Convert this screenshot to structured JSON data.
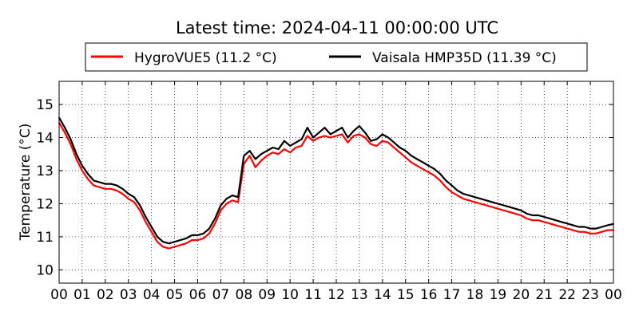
{
  "chart_data": {
    "type": "line",
    "title": "Latest time: 2024-04-11 00:00:00 UTC",
    "ylabel": "Temperature (°C)",
    "xlabel": "",
    "x_unit": "hour (UTC)",
    "xlim": [
      0,
      24
    ],
    "ylim": [
      9.6,
      15.7
    ],
    "x_tick_labels": [
      "00",
      "01",
      "02",
      "03",
      "04",
      "05",
      "06",
      "07",
      "08",
      "09",
      "10",
      "11",
      "12",
      "13",
      "14",
      "15",
      "16",
      "17",
      "18",
      "19",
      "20",
      "21",
      "22",
      "23",
      "00"
    ],
    "y_ticks": [
      10,
      11,
      12,
      13,
      14,
      15
    ],
    "grid": true,
    "legend_position": "top",
    "series": [
      {
        "name": "HygroVUE5 (11.2 °C)",
        "color": "#ff0000",
        "x": [
          0,
          0.25,
          0.5,
          0.75,
          1,
          1.25,
          1.5,
          1.75,
          2,
          2.25,
          2.5,
          2.75,
          3,
          3.25,
          3.5,
          3.75,
          4,
          4.25,
          4.5,
          4.75,
          5,
          5.25,
          5.5,
          5.75,
          6,
          6.25,
          6.5,
          6.75,
          7,
          7.25,
          7.5,
          7.75,
          8,
          8.25,
          8.5,
          8.75,
          9,
          9.25,
          9.5,
          9.75,
          10,
          10.25,
          10.5,
          10.75,
          11,
          11.25,
          11.5,
          11.75,
          12,
          12.25,
          12.5,
          12.75,
          13,
          13.25,
          13.5,
          13.75,
          14,
          14.25,
          14.5,
          14.75,
          15,
          15.25,
          15.5,
          15.75,
          16,
          16.25,
          16.5,
          16.75,
          17,
          17.25,
          17.5,
          17.75,
          18,
          18.25,
          18.5,
          18.75,
          19,
          19.25,
          19.5,
          19.75,
          20,
          20.25,
          20.5,
          20.75,
          21,
          21.25,
          21.5,
          21.75,
          22,
          22.25,
          22.5,
          22.75,
          23,
          23.25,
          23.5,
          23.75,
          24
        ],
        "values": [
          14.45,
          14.15,
          13.8,
          13.35,
          13.0,
          12.75,
          12.55,
          12.5,
          12.45,
          12.45,
          12.4,
          12.3,
          12.15,
          12.05,
          11.8,
          11.45,
          11.15,
          10.85,
          10.7,
          10.65,
          10.7,
          10.75,
          10.8,
          10.9,
          10.9,
          10.95,
          11.1,
          11.4,
          11.8,
          12.0,
          12.1,
          12.05,
          13.2,
          13.45,
          13.1,
          13.3,
          13.45,
          13.55,
          13.5,
          13.65,
          13.55,
          13.7,
          13.75,
          14.05,
          13.9,
          14.0,
          14.05,
          14.0,
          14.05,
          14.1,
          13.85,
          14.05,
          14.1,
          14.0,
          13.8,
          13.75,
          13.9,
          13.85,
          13.7,
          13.55,
          13.4,
          13.25,
          13.15,
          13.05,
          12.95,
          12.85,
          12.7,
          12.5,
          12.35,
          12.25,
          12.15,
          12.1,
          12.05,
          12.0,
          11.95,
          11.9,
          11.85,
          11.8,
          11.75,
          11.7,
          11.65,
          11.55,
          11.5,
          11.5,
          11.45,
          11.4,
          11.35,
          11.3,
          11.25,
          11.2,
          11.15,
          11.15,
          11.1,
          11.1,
          11.15,
          11.2,
          11.2
        ]
      },
      {
        "name": "Vaisala HMP35D (11.39 °C)",
        "color": "#000000",
        "x": [
          0,
          0.25,
          0.5,
          0.75,
          1,
          1.25,
          1.5,
          1.75,
          2,
          2.25,
          2.5,
          2.75,
          3,
          3.25,
          3.5,
          3.75,
          4,
          4.25,
          4.5,
          4.75,
          5,
          5.25,
          5.5,
          5.75,
          6,
          6.25,
          6.5,
          6.75,
          7,
          7.25,
          7.5,
          7.75,
          8,
          8.25,
          8.5,
          8.75,
          9,
          9.25,
          9.5,
          9.75,
          10,
          10.25,
          10.5,
          10.75,
          11,
          11.25,
          11.5,
          11.75,
          12,
          12.25,
          12.5,
          12.75,
          13,
          13.25,
          13.5,
          13.75,
          14,
          14.25,
          14.5,
          14.75,
          15,
          15.25,
          15.5,
          15.75,
          16,
          16.25,
          16.5,
          16.75,
          17,
          17.25,
          17.5,
          17.75,
          18,
          18.25,
          18.5,
          18.75,
          19,
          19.25,
          19.5,
          19.75,
          20,
          20.25,
          20.5,
          20.75,
          21,
          21.25,
          21.5,
          21.75,
          22,
          22.25,
          22.5,
          22.75,
          23,
          23.25,
          23.5,
          23.75,
          24
        ],
        "values": [
          14.6,
          14.3,
          13.95,
          13.5,
          13.15,
          12.9,
          12.7,
          12.65,
          12.6,
          12.6,
          12.55,
          12.45,
          12.3,
          12.2,
          11.95,
          11.6,
          11.3,
          11.0,
          10.85,
          10.8,
          10.85,
          10.9,
          10.95,
          11.05,
          11.05,
          11.1,
          11.25,
          11.55,
          11.95,
          12.15,
          12.25,
          12.2,
          13.45,
          13.6,
          13.35,
          13.5,
          13.6,
          13.7,
          13.65,
          13.9,
          13.75,
          13.85,
          13.95,
          14.3,
          14.0,
          14.15,
          14.3,
          14.1,
          14.2,
          14.3,
          14.0,
          14.2,
          14.35,
          14.15,
          13.9,
          13.95,
          14.1,
          14.0,
          13.85,
          13.7,
          13.6,
          13.45,
          13.35,
          13.25,
          13.15,
          13.05,
          12.9,
          12.7,
          12.55,
          12.4,
          12.3,
          12.25,
          12.2,
          12.15,
          12.1,
          12.05,
          12.0,
          11.95,
          11.9,
          11.85,
          11.8,
          11.7,
          11.65,
          11.65,
          11.6,
          11.55,
          11.5,
          11.45,
          11.4,
          11.35,
          11.3,
          11.3,
          11.25,
          11.25,
          11.3,
          11.35,
          11.39
        ]
      }
    ]
  }
}
